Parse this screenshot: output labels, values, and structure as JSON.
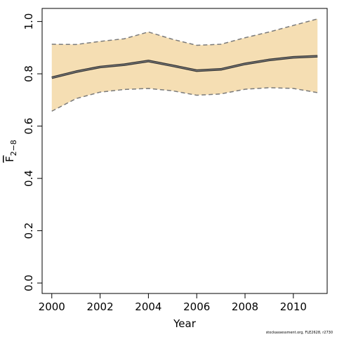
{
  "chart_data": {
    "type": "area",
    "xlabel": "Year",
    "ylabel": {
      "base": "F",
      "subscript": "2−8"
    },
    "x": [
      2000,
      2001,
      2002,
      2003,
      2004,
      2005,
      2006,
      2007,
      2008,
      2009,
      2010,
      2011
    ],
    "estimate": [
      0.785,
      0.808,
      0.826,
      0.835,
      0.849,
      0.831,
      0.812,
      0.817,
      0.838,
      0.853,
      0.863,
      0.867
    ],
    "upper": [
      0.913,
      0.912,
      0.924,
      0.934,
      0.96,
      0.932,
      0.909,
      0.913,
      0.938,
      0.96,
      0.985,
      1.01
    ],
    "lower": [
      0.657,
      0.705,
      0.73,
      0.74,
      0.744,
      0.735,
      0.718,
      0.723,
      0.741,
      0.747,
      0.744,
      0.728
    ],
    "xlim": [
      1999.6,
      2011.4
    ],
    "ylim": [
      -0.04,
      1.05
    ],
    "xticks": [
      2000,
      2002,
      2004,
      2006,
      2008,
      2010
    ],
    "yticks": [
      0.0,
      0.2,
      0.4,
      0.6,
      0.8,
      1.0
    ],
    "ytick_labels": [
      "0.0",
      "0.2",
      "0.4",
      "0.6",
      "0.8",
      "1.0"
    ],
    "colors": {
      "band": "#f5deb3",
      "estimate": "#333333",
      "bounds": "#7a7a7a",
      "axis": "#000000"
    }
  },
  "credit": "stockassessment.org, FLE2628, r2730"
}
